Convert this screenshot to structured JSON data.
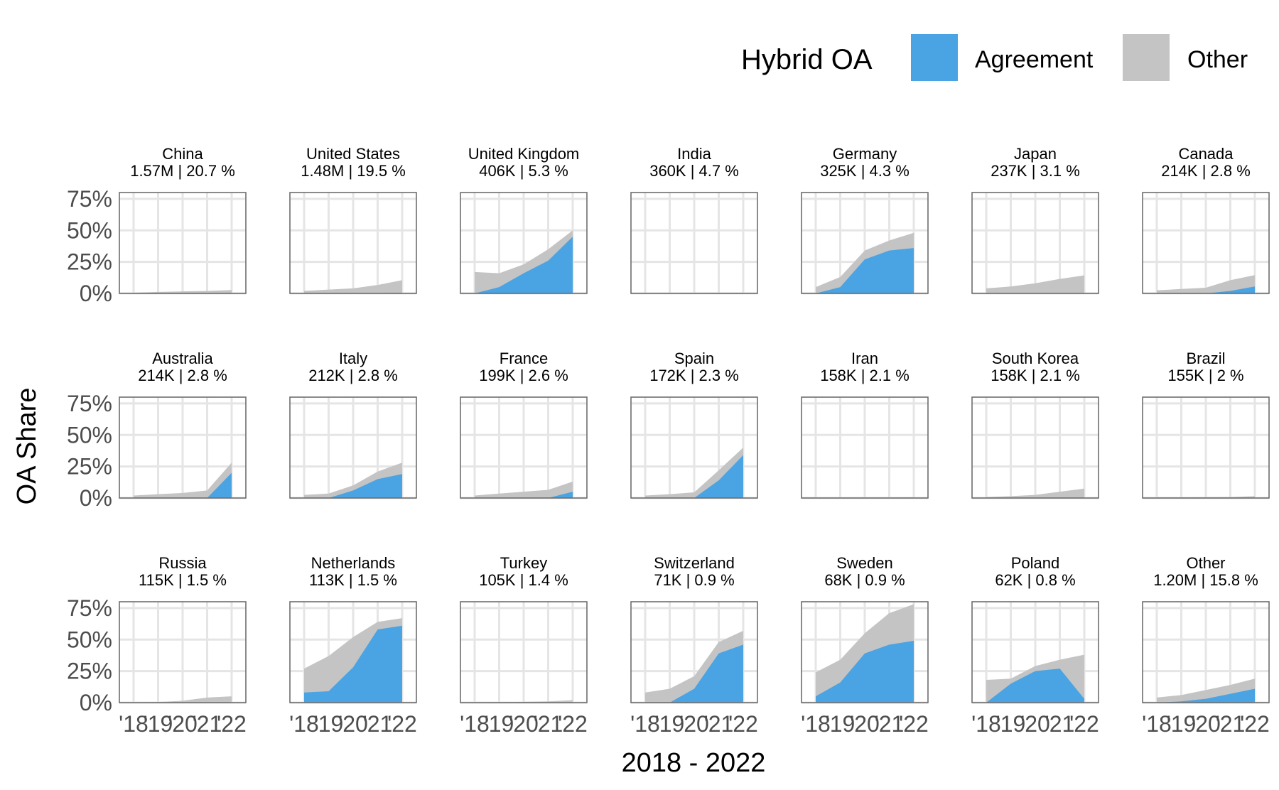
{
  "legend": {
    "title": "Hybrid OA",
    "items": [
      {
        "label": "Agreement",
        "color": "#4aa3e3"
      },
      {
        "label": "Other",
        "color": "#c4c4c4"
      }
    ]
  },
  "chart_data": {
    "type": "area",
    "facet_layout": "3 rows x 7 columns",
    "xlabel": "2018 - 2022",
    "ylabel": "OA Share",
    "x": [
      "'18",
      "'19",
      "'20",
      "'21",
      "'22"
    ],
    "y_ticks": [
      "0%",
      "25%",
      "50%",
      "75%"
    ],
    "ylim": [
      0,
      0.8
    ],
    "grid": true,
    "legend_position": "top-right",
    "stacked": true,
    "panels": [
      {
        "title": "China",
        "subtitle": "1.57M | 20.7 %",
        "agreement": [
          0,
          0,
          0,
          0,
          0.002
        ],
        "other": [
          0.005,
          0.012,
          0.016,
          0.02,
          0.025
        ]
      },
      {
        "title": "United States",
        "subtitle": "1.48M | 19.5 %",
        "agreement": [
          0,
          0,
          0,
          0.002,
          0.005
        ],
        "other": [
          0.02,
          0.03,
          0.04,
          0.065,
          0.1
        ]
      },
      {
        "title": "United Kingdom",
        "subtitle": "406K | 5.3 %",
        "agreement": [
          0,
          0.05,
          0.16,
          0.26,
          0.45
        ],
        "other": [
          0.17,
          0.11,
          0.07,
          0.09,
          0.05
        ]
      },
      {
        "title": "India",
        "subtitle": "360K | 4.7 %",
        "agreement": [
          0,
          0,
          0,
          0,
          0
        ],
        "other": [
          0.002,
          0.003,
          0.004,
          0.005,
          0.005
        ]
      },
      {
        "title": "Germany",
        "subtitle": "325K | 4.3 %",
        "agreement": [
          0,
          0.05,
          0.27,
          0.34,
          0.36
        ],
        "other": [
          0.05,
          0.08,
          0.07,
          0.08,
          0.12
        ]
      },
      {
        "title": "Japan",
        "subtitle": "237K | 3.1 %",
        "agreement": [
          0,
          0,
          0,
          0,
          0.003
        ],
        "other": [
          0.04,
          0.055,
          0.08,
          0.115,
          0.14
        ]
      },
      {
        "title": "Canada",
        "subtitle": "214K | 2.8 %",
        "agreement": [
          0,
          0,
          0,
          0.02,
          0.055
        ],
        "other": [
          0.025,
          0.035,
          0.045,
          0.085,
          0.09
        ]
      },
      {
        "title": "Australia",
        "subtitle": "214K | 2.8 %",
        "agreement": [
          0,
          0,
          0,
          0,
          0.2
        ],
        "other": [
          0.02,
          0.03,
          0.04,
          0.06,
          0.08
        ]
      },
      {
        "title": "Italy",
        "subtitle": "212K | 2.8 %",
        "agreement": [
          0,
          0,
          0.06,
          0.15,
          0.19
        ],
        "other": [
          0.025,
          0.035,
          0.04,
          0.06,
          0.09
        ]
      },
      {
        "title": "France",
        "subtitle": "199K | 2.6 %",
        "agreement": [
          0,
          0,
          0,
          0,
          0.05
        ],
        "other": [
          0.02,
          0.035,
          0.05,
          0.065,
          0.08
        ]
      },
      {
        "title": "Spain",
        "subtitle": "172K | 2.3 %",
        "agreement": [
          0,
          0,
          0,
          0.14,
          0.34
        ],
        "other": [
          0.02,
          0.03,
          0.045,
          0.08,
          0.06
        ]
      },
      {
        "title": "Iran",
        "subtitle": "158K | 2.1 %",
        "agreement": [
          0,
          0,
          0,
          0,
          0
        ],
        "other": [
          0.002,
          0.002,
          0.002,
          0.003,
          0.005
        ]
      },
      {
        "title": "South Korea",
        "subtitle": "158K | 2.1 %",
        "agreement": [
          0,
          0,
          0,
          0,
          0
        ],
        "other": [
          0.008,
          0.015,
          0.025,
          0.05,
          0.075
        ]
      },
      {
        "title": "Brazil",
        "subtitle": "155K | 2 %",
        "agreement": [
          0,
          0,
          0,
          0,
          0
        ],
        "other": [
          0.005,
          0.005,
          0.006,
          0.008,
          0.015
        ]
      },
      {
        "title": "Russia",
        "subtitle": "115K | 1.5 %",
        "agreement": [
          0,
          0,
          0,
          0,
          0
        ],
        "other": [
          0.002,
          0.005,
          0.015,
          0.04,
          0.05
        ]
      },
      {
        "title": "Netherlands",
        "subtitle": "113K | 1.5 %",
        "agreement": [
          0.08,
          0.09,
          0.28,
          0.58,
          0.61
        ],
        "other": [
          0.19,
          0.28,
          0.24,
          0.06,
          0.06
        ]
      },
      {
        "title": "Turkey",
        "subtitle": "105K | 1.4 %",
        "agreement": [
          0,
          0,
          0,
          0,
          0
        ],
        "other": [
          0.002,
          0.004,
          0.006,
          0.01,
          0.02
        ]
      },
      {
        "title": "Switzerland",
        "subtitle": "71K | 0.9 %",
        "agreement": [
          0,
          0,
          0.11,
          0.39,
          0.46
        ],
        "other": [
          0.08,
          0.11,
          0.1,
          0.09,
          0.11
        ]
      },
      {
        "title": "Sweden",
        "subtitle": "68K | 0.9 %",
        "agreement": [
          0.05,
          0.16,
          0.39,
          0.46,
          0.49
        ],
        "other": [
          0.19,
          0.18,
          0.16,
          0.25,
          0.29
        ]
      },
      {
        "title": "Poland",
        "subtitle": "62K | 0.8 %",
        "agreement": [
          0,
          0.15,
          0.25,
          0.27,
          0.03
        ],
        "other": [
          0.18,
          0.04,
          0.04,
          0.07,
          0.35
        ]
      },
      {
        "title": "Other",
        "subtitle": "1.20M | 15.8 %",
        "agreement": [
          0,
          0.01,
          0.03,
          0.07,
          0.11
        ],
        "other": [
          0.04,
          0.05,
          0.07,
          0.07,
          0.08
        ]
      }
    ]
  }
}
